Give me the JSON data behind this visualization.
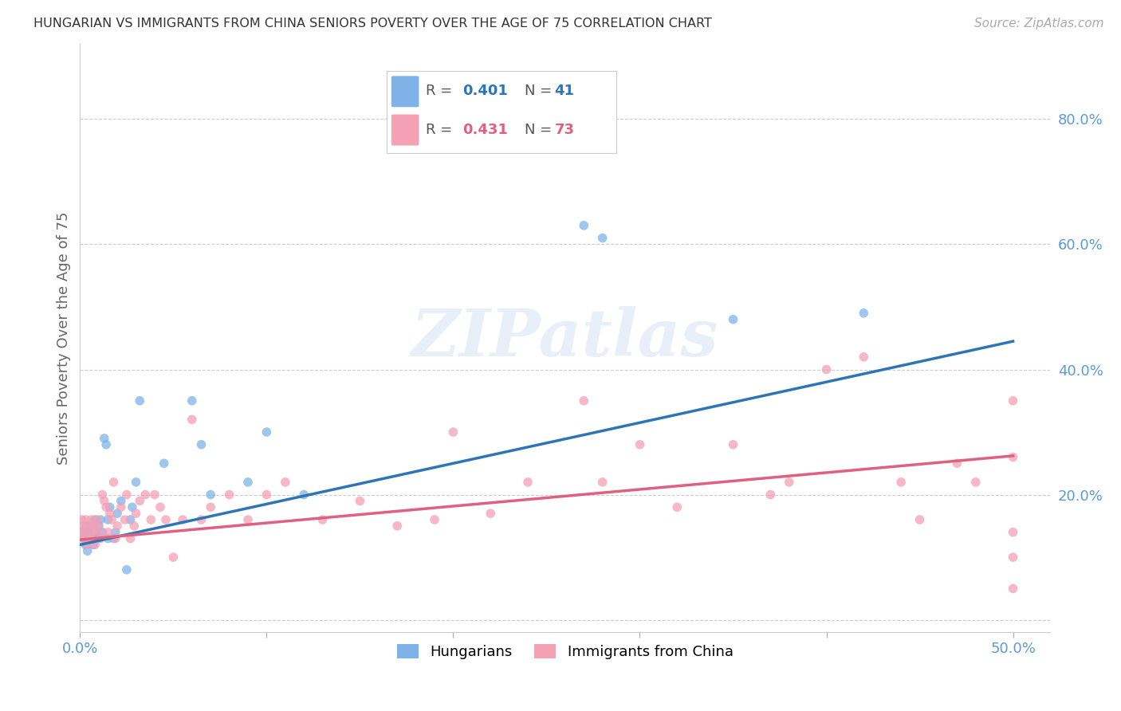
{
  "title": "HUNGARIAN VS IMMIGRANTS FROM CHINA SENIORS POVERTY OVER THE AGE OF 75 CORRELATION CHART",
  "source": "Source: ZipAtlas.com",
  "ylabel": "Seniors Poverty Over the Age of 75",
  "xlim": [
    0.0,
    0.52
  ],
  "ylim": [
    -0.02,
    0.92
  ],
  "background_color": "#ffffff",
  "axis_color": "#5b9bd5",
  "grid_color": "#cccccc",
  "hungarian_color": "#7fb3e8",
  "china_color": "#f4a0b5",
  "line1_color": "#2e75b6",
  "line2_color": "#e06080",
  "marker_size": 70,
  "hun_line_x": [
    0.0,
    0.5
  ],
  "hun_line_y": [
    0.12,
    0.445
  ],
  "chi_line_x": [
    0.0,
    0.5
  ],
  "chi_line_y": [
    0.128,
    0.262
  ],
  "hungarian_x": [
    0.001,
    0.002,
    0.003,
    0.003,
    0.004,
    0.004,
    0.005,
    0.006,
    0.007,
    0.008,
    0.008,
    0.009,
    0.01,
    0.01,
    0.011,
    0.012,
    0.013,
    0.014,
    0.015,
    0.015,
    0.016,
    0.018,
    0.019,
    0.02,
    0.022,
    0.025,
    0.027,
    0.028,
    0.03,
    0.032,
    0.045,
    0.06,
    0.065,
    0.07,
    0.09,
    0.1,
    0.12,
    0.27,
    0.28,
    0.35,
    0.42
  ],
  "hungarian_y": [
    0.14,
    0.13,
    0.15,
    0.12,
    0.14,
    0.11,
    0.13,
    0.15,
    0.12,
    0.14,
    0.16,
    0.13,
    0.15,
    0.13,
    0.16,
    0.14,
    0.29,
    0.28,
    0.13,
    0.16,
    0.18,
    0.13,
    0.14,
    0.17,
    0.19,
    0.08,
    0.16,
    0.18,
    0.22,
    0.35,
    0.25,
    0.35,
    0.28,
    0.2,
    0.22,
    0.3,
    0.2,
    0.63,
    0.61,
    0.48,
    0.49
  ],
  "china_x": [
    0.001,
    0.001,
    0.002,
    0.002,
    0.003,
    0.003,
    0.004,
    0.005,
    0.005,
    0.006,
    0.006,
    0.007,
    0.007,
    0.008,
    0.009,
    0.01,
    0.01,
    0.011,
    0.012,
    0.013,
    0.014,
    0.015,
    0.016,
    0.017,
    0.018,
    0.019,
    0.02,
    0.022,
    0.024,
    0.025,
    0.027,
    0.029,
    0.03,
    0.032,
    0.035,
    0.038,
    0.04,
    0.043,
    0.046,
    0.05,
    0.055,
    0.06,
    0.065,
    0.07,
    0.08,
    0.09,
    0.1,
    0.11,
    0.13,
    0.15,
    0.17,
    0.19,
    0.2,
    0.22,
    0.24,
    0.27,
    0.28,
    0.3,
    0.32,
    0.35,
    0.37,
    0.38,
    0.4,
    0.42,
    0.44,
    0.45,
    0.47,
    0.48,
    0.5,
    0.5,
    0.5,
    0.5,
    0.5
  ],
  "china_y": [
    0.14,
    0.16,
    0.13,
    0.15,
    0.14,
    0.16,
    0.12,
    0.15,
    0.13,
    0.16,
    0.13,
    0.14,
    0.15,
    0.12,
    0.16,
    0.14,
    0.15,
    0.13,
    0.2,
    0.19,
    0.18,
    0.14,
    0.17,
    0.16,
    0.22,
    0.13,
    0.15,
    0.18,
    0.16,
    0.2,
    0.13,
    0.15,
    0.17,
    0.19,
    0.2,
    0.16,
    0.2,
    0.18,
    0.16,
    0.1,
    0.16,
    0.32,
    0.16,
    0.18,
    0.2,
    0.16,
    0.2,
    0.22,
    0.16,
    0.19,
    0.15,
    0.16,
    0.3,
    0.17,
    0.22,
    0.35,
    0.22,
    0.28,
    0.18,
    0.28,
    0.2,
    0.22,
    0.4,
    0.42,
    0.22,
    0.16,
    0.25,
    0.22,
    0.26,
    0.14,
    0.1,
    0.05,
    0.35
  ]
}
